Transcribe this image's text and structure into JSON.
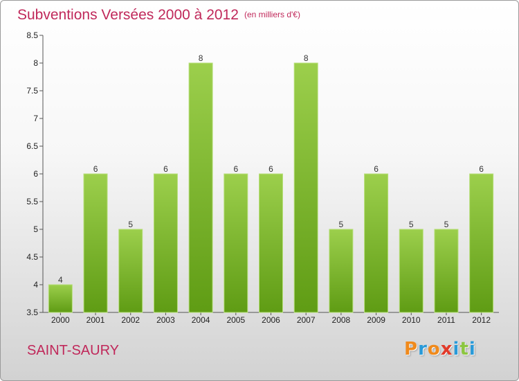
{
  "header": {
    "title": "Subventions Versées 2000 à 2012",
    "unit": "(en milliers d'€)"
  },
  "commune": "SAINT-SAURY",
  "brand": {
    "letters": [
      "P",
      "r",
      "o",
      "x",
      "i",
      "t",
      "i"
    ],
    "colors": [
      "#f08a1c",
      "#2a9ad8",
      "#f08a1c",
      "#e23a2a",
      "#2a9ad8",
      "#8cc63f",
      "#2a9ad8"
    ]
  },
  "colors": {
    "bar_top": "#9ccf4c",
    "bar_bottom": "#5f9c14",
    "accent": "#c0285a"
  },
  "chart_data": {
    "type": "bar",
    "categories": [
      "2000",
      "2001",
      "2002",
      "2003",
      "2004",
      "2005",
      "2006",
      "2007",
      "2008",
      "2009",
      "2010",
      "2011",
      "2012"
    ],
    "values": [
      4,
      6,
      5,
      6,
      8,
      6,
      6,
      8,
      5,
      6,
      5,
      5,
      6
    ],
    "data_labels": [
      "4",
      "6",
      "5",
      "6",
      "8",
      "6",
      "6",
      "8",
      "5",
      "6",
      "5",
      "5",
      "6"
    ],
    "ylim": [
      3.5,
      8.5
    ],
    "yticks": [
      3.5,
      4,
      4.5,
      5,
      5.5,
      6,
      6.5,
      7,
      7.5,
      8,
      8.5
    ],
    "ytick_labels": [
      "3.5",
      "4",
      "4.5",
      "5",
      "5.5",
      "6",
      "6.5",
      "7",
      "7.5",
      "8",
      "8.5"
    ],
    "grid": false
  }
}
